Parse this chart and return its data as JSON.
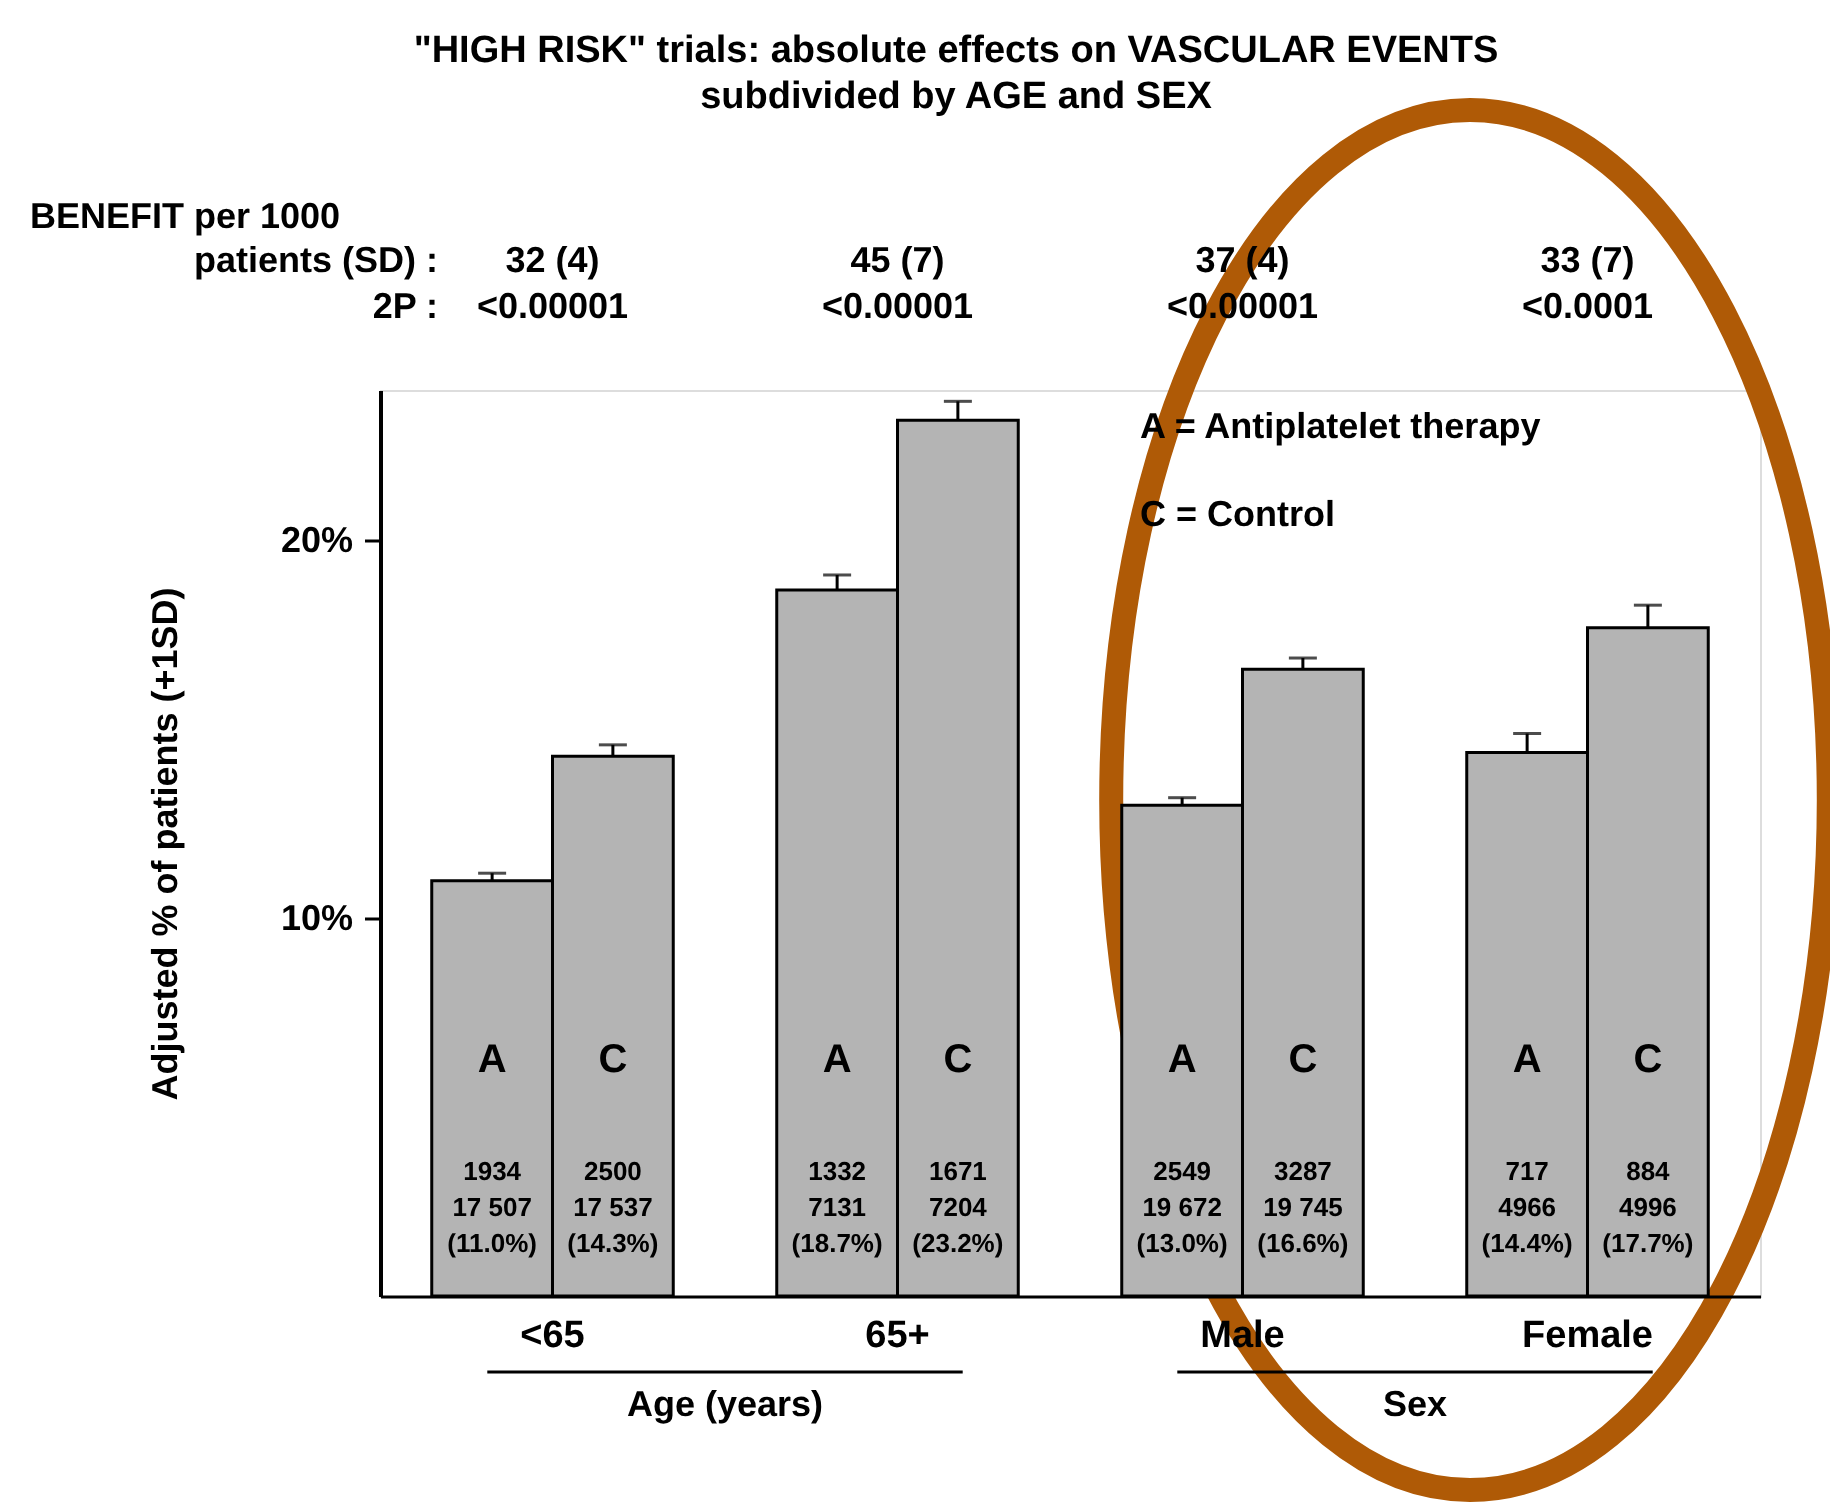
{
  "chart_data": {
    "type": "bar",
    "title": "\"HIGH RISK\"  trials: absolute effects on VASCULAR EVENTS",
    "subtitle": "subdivided by AGE and SEX",
    "ylabel": "Adjusted % of patients (+1SD)",
    "categories": [
      "<65",
      "65+",
      "Male",
      "Female"
    ],
    "series": [
      {
        "name": "A",
        "color": "#b4b4b4",
        "values": [
          11.0,
          18.7,
          13.0,
          14.4
        ],
        "errors": [
          [
            11.0,
            11.2
          ],
          [
            18.7,
            19.1
          ],
          [
            13.0,
            13.2
          ],
          [
            14.4,
            14.9
          ]
        ],
        "value_labels": [
          "1934\n17 507\n(11.0%)",
          "1332\n7131\n(18.7%)",
          "2549\n19 672\n(13.0%)",
          "717\n4966\n(14.4%)"
        ]
      },
      {
        "name": "C",
        "color": "#b4b4b4",
        "values": [
          14.3,
          23.2,
          16.6,
          17.7
        ],
        "errors": [
          [
            14.3,
            14.6
          ],
          [
            23.2,
            23.7
          ],
          [
            16.6,
            16.9
          ],
          [
            17.7,
            18.3
          ]
        ],
        "value_labels": [
          "2500\n17 537\n(14.3%)",
          "1671\n7204\n(23.2%)",
          "3287\n19 745\n(16.6%)",
          "884\n4996\n(17.7%)"
        ]
      }
    ],
    "ylim": [
      0,
      24
    ],
    "yticks": [
      {
        "value": 10,
        "label": "10%"
      },
      {
        "value": 20,
        "label": "20%"
      }
    ],
    "annotations": [
      "BENEFIT per 1000",
      "patients (SD) :",
      "2P :",
      "32 (4)",
      "<0.00001",
      "45 (7)",
      "<0.00001",
      "37 (4)",
      "<0.00001",
      "33 (7)",
      "<0.0001",
      "A = Antiplatelet therapy",
      "C = Control",
      "Age (years)",
      "Sex"
    ]
  }
}
